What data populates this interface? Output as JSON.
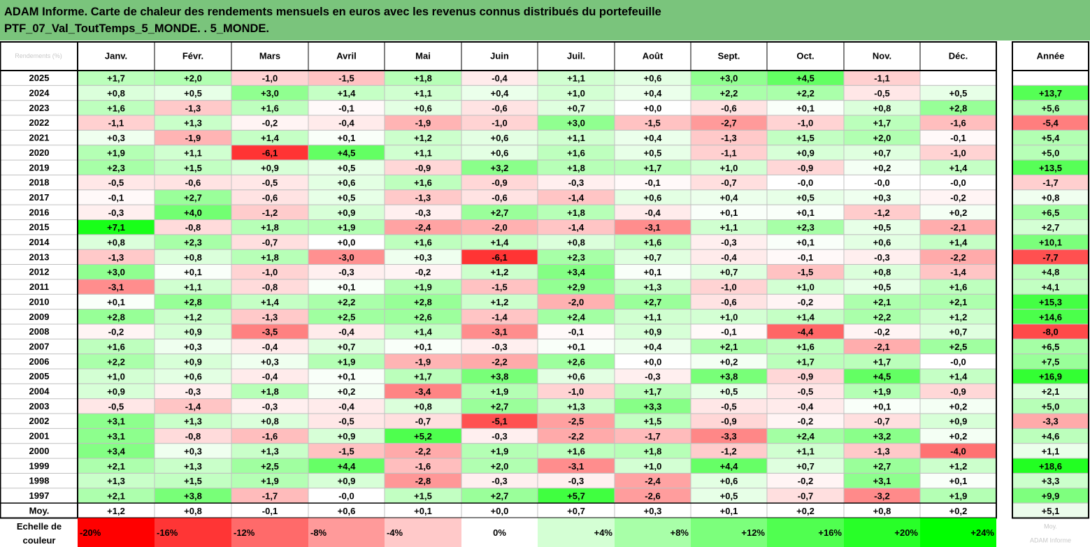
{
  "title": {
    "line1": "ADAM Informe. Carte de chaleur des rendements mensuels en euros avec les revenus connus distribués du portefeuille",
    "line2": "PTF_07_Val_ToutTemps_5_MONDE. . 5_MONDE."
  },
  "header_corner": "Rendements (%)",
  "year_header": "Année",
  "mean_label": "Moy.",
  "scale_caption_line1": "Echelle de",
  "scale_caption_line2": "couleur",
  "scale_tail": "Moy.",
  "watermark": "ADAM Informe",
  "colors": {
    "title_bg": "#7ac47c",
    "negative_max": "#ff0000",
    "positive_max": "#00ff00",
    "neutral": "#ffffff"
  },
  "color_scale": [
    "-20%",
    "-16%",
    "-12%",
    "-8%",
    "-4%",
    "0%",
    "+4%",
    "+8%",
    "+12%",
    "+16%",
    "+20%",
    "+24%"
  ],
  "chart_data": {
    "type": "heatmap",
    "months": [
      "Janv.",
      "Févr.",
      "Mars",
      "Avril",
      "Mai",
      "Juin",
      "Juil.",
      "Août",
      "Sept.",
      "Oct.",
      "Nov.",
      "Déc."
    ],
    "rows": [
      {
        "year": "2025",
        "values": [
          "+1,7",
          "+2,0",
          "-1,0",
          "-1,5",
          "+1,8",
          "-0,4",
          "+1,1",
          "+0,6",
          "+3,0",
          "+4,5",
          "-1,1",
          ""
        ],
        "annual": ""
      },
      {
        "year": "2024",
        "values": [
          "+0,8",
          "+0,5",
          "+3,0",
          "+1,4",
          "+1,1",
          "+0,4",
          "+1,0",
          "+0,4",
          "+2,2",
          "+2,2",
          "-0,5",
          "+0,5"
        ],
        "annual": "+13,7"
      },
      {
        "year": "2023",
        "values": [
          "+1,6",
          "-1,3",
          "+1,6",
          "-0,1",
          "+0,6",
          "-0,6",
          "+0,7",
          "+0,0",
          "-0,6",
          "+0,1",
          "+0,8",
          "+2,8"
        ],
        "annual": "+5,6"
      },
      {
        "year": "2022",
        "values": [
          "-1,1",
          "+1,3",
          "-0,2",
          "-0,4",
          "-1,9",
          "-1,0",
          "+3,0",
          "-1,5",
          "-2,7",
          "-1,0",
          "+1,7",
          "-1,6"
        ],
        "annual": "-5,4"
      },
      {
        "year": "2021",
        "values": [
          "+0,3",
          "-1,9",
          "+1,4",
          "+0,1",
          "+1,2",
          "+0,6",
          "+1,1",
          "+0,4",
          "-1,3",
          "+1,5",
          "+2,0",
          "-0,1"
        ],
        "annual": "+5,4"
      },
      {
        "year": "2020",
        "values": [
          "+1,9",
          "+1,1",
          "-6,1",
          "+4,5",
          "+1,1",
          "+0,6",
          "+1,6",
          "+0,5",
          "-1,1",
          "+0,9",
          "+0,7",
          "-1,0"
        ],
        "annual": "+5,0"
      },
      {
        "year": "2019",
        "values": [
          "+2,3",
          "+1,5",
          "+0,9",
          "+0,5",
          "-0,9",
          "+3,2",
          "+1,8",
          "+1,7",
          "+1,0",
          "-0,9",
          "+0,2",
          "+1,4"
        ],
        "annual": "+13,5"
      },
      {
        "year": "2018",
        "values": [
          "-0,5",
          "-0,6",
          "-0,5",
          "+0,6",
          "+1,6",
          "-0,9",
          "-0,3",
          "-0,1",
          "-0,7",
          "-0,0",
          "-0,0",
          "-0,0"
        ],
        "annual": "-1,7"
      },
      {
        "year": "2017",
        "values": [
          "-0,1",
          "+2,7",
          "-0,6",
          "+0,5",
          "-1,3",
          "-0,6",
          "-1,4",
          "+0,6",
          "+0,4",
          "+0,5",
          "+0,3",
          "-0,2"
        ],
        "annual": "+0,8"
      },
      {
        "year": "2016",
        "values": [
          "-0,3",
          "+4,0",
          "-1,2",
          "+0,9",
          "-0,3",
          "+2,7",
          "+1,8",
          "-0,4",
          "+0,1",
          "+0,1",
          "-1,2",
          "+0,2"
        ],
        "annual": "+6,5"
      },
      {
        "year": "2015",
        "values": [
          "+7,1",
          "-0,8",
          "+1,8",
          "+1,9",
          "-2,4",
          "-2,0",
          "-1,4",
          "-3,1",
          "+1,1",
          "+2,3",
          "+0,5",
          "-2,1"
        ],
        "annual": "+2,7"
      },
      {
        "year": "2014",
        "values": [
          "+0,8",
          "+2,3",
          "-0,7",
          "+0,0",
          "+1,6",
          "+1,4",
          "+0,8",
          "+1,6",
          "-0,3",
          "+0,1",
          "+0,6",
          "+1,4"
        ],
        "annual": "+10,1"
      },
      {
        "year": "2013",
        "values": [
          "-1,3",
          "+0,8",
          "+1,8",
          "-3,0",
          "+0,3",
          "-6,1",
          "+2,3",
          "+0,7",
          "-0,4",
          "-0,1",
          "-0,3",
          "-2,2"
        ],
        "annual": "-7,7"
      },
      {
        "year": "2012",
        "values": [
          "+3,0",
          "+0,1",
          "-1,0",
          "-0,3",
          "-0,2",
          "+1,2",
          "+3,4",
          "+0,1",
          "+0,7",
          "-1,5",
          "+0,8",
          "-1,4"
        ],
        "annual": "+4,8"
      },
      {
        "year": "2011",
        "values": [
          "-3,1",
          "+1,1",
          "-0,8",
          "+0,1",
          "+1,9",
          "-1,5",
          "+2,9",
          "+1,3",
          "-1,0",
          "+1,0",
          "+0,5",
          "+1,6"
        ],
        "annual": "+4,1"
      },
      {
        "year": "2010",
        "values": [
          "+0,1",
          "+2,8",
          "+1,4",
          "+2,2",
          "+2,8",
          "+1,2",
          "-2,0",
          "+2,7",
          "-0,6",
          "-0,2",
          "+2,1",
          "+2,1"
        ],
        "annual": "+15,3"
      },
      {
        "year": "2009",
        "values": [
          "+2,8",
          "+1,2",
          "-1,3",
          "+2,5",
          "+2,6",
          "-1,4",
          "+2,4",
          "+1,1",
          "+1,0",
          "+1,4",
          "+2,2",
          "+1,2"
        ],
        "annual": "+14,6"
      },
      {
        "year": "2008",
        "values": [
          "-0,2",
          "+0,9",
          "-3,5",
          "-0,4",
          "+1,4",
          "-3,1",
          "-0,1",
          "+0,9",
          "-0,1",
          "-4,4",
          "-0,2",
          "+0,7"
        ],
        "annual": "-8,0"
      },
      {
        "year": "2007",
        "values": [
          "+1,6",
          "+0,3",
          "-0,4",
          "+0,7",
          "+0,1",
          "-0,3",
          "+0,1",
          "+0,4",
          "+2,1",
          "+1,6",
          "-2,1",
          "+2,5"
        ],
        "annual": "+6,5"
      },
      {
        "year": "2006",
        "values": [
          "+2,2",
          "+0,9",
          "+0,3",
          "+1,9",
          "-1,9",
          "-2,2",
          "+2,6",
          "+0,0",
          "+0,2",
          "+1,7",
          "+1,7",
          "-0,0"
        ],
        "annual": "+7,5"
      },
      {
        "year": "2005",
        "values": [
          "+1,0",
          "+0,6",
          "-0,4",
          "+0,1",
          "+1,7",
          "+3,8",
          "+0,6",
          "-0,3",
          "+3,8",
          "-0,9",
          "+4,5",
          "+1,4"
        ],
        "annual": "+16,9"
      },
      {
        "year": "2004",
        "values": [
          "+0,9",
          "-0,3",
          "+1,8",
          "+0,2",
          "-3,4",
          "+1,9",
          "-1,0",
          "+1,7",
          "+0,5",
          "-0,5",
          "+1,9",
          "-0,9"
        ],
        "annual": "+2,1"
      },
      {
        "year": "2003",
        "values": [
          "-0,5",
          "-1,4",
          "-0,3",
          "-0,4",
          "+0,8",
          "+2,7",
          "+1,3",
          "+3,3",
          "-0,5",
          "-0,4",
          "+0,1",
          "+0,2"
        ],
        "annual": "+5,0"
      },
      {
        "year": "2002",
        "values": [
          "+3,1",
          "+1,3",
          "+0,8",
          "-0,5",
          "-0,7",
          "-5,1",
          "-2,5",
          "+1,5",
          "-0,9",
          "-0,2",
          "-0,7",
          "+0,9"
        ],
        "annual": "-3,3"
      },
      {
        "year": "2001",
        "values": [
          "+3,1",
          "-0,8",
          "-1,6",
          "+0,9",
          "+5,2",
          "-0,3",
          "-2,2",
          "-1,7",
          "-3,3",
          "+2,4",
          "+3,2",
          "+0,2"
        ],
        "annual": "+4,6"
      },
      {
        "year": "2000",
        "values": [
          "+3,4",
          "+0,3",
          "+1,3",
          "-1,5",
          "-2,2",
          "+1,9",
          "+1,6",
          "+1,8",
          "-1,2",
          "+1,1",
          "-1,3",
          "-4,0"
        ],
        "annual": "+1,1"
      },
      {
        "year": "1999",
        "values": [
          "+2,1",
          "+1,3",
          "+2,5",
          "+4,4",
          "-1,6",
          "+2,0",
          "-3,1",
          "+1,0",
          "+4,4",
          "+0,7",
          "+2,7",
          "+1,2"
        ],
        "annual": "+18,6"
      },
      {
        "year": "1998",
        "values": [
          "+1,3",
          "+1,5",
          "+1,9",
          "+0,9",
          "-2,8",
          "-0,3",
          "-0,3",
          "-2,4",
          "+0,6",
          "-0,2",
          "+3,1",
          "+0,1"
        ],
        "annual": "+3,3"
      },
      {
        "year": "1997",
        "values": [
          "+2,1",
          "+3,8",
          "-1,7",
          "-0,0",
          "+1,5",
          "+2,7",
          "+5,7",
          "-2,6",
          "+0,5",
          "-0,7",
          "-3,2",
          "+1,9"
        ],
        "annual": "+9,9"
      }
    ],
    "mean": {
      "values": [
        "+1,2",
        "+0,8",
        "-0,1",
        "+0,6",
        "+0,1",
        "+0,0",
        "+0,7",
        "+0,3",
        "+0,1",
        "+0,2",
        "+0,8",
        "+0,2"
      ],
      "annual": "+5,1"
    },
    "color_min": -20,
    "color_max": 24
  }
}
